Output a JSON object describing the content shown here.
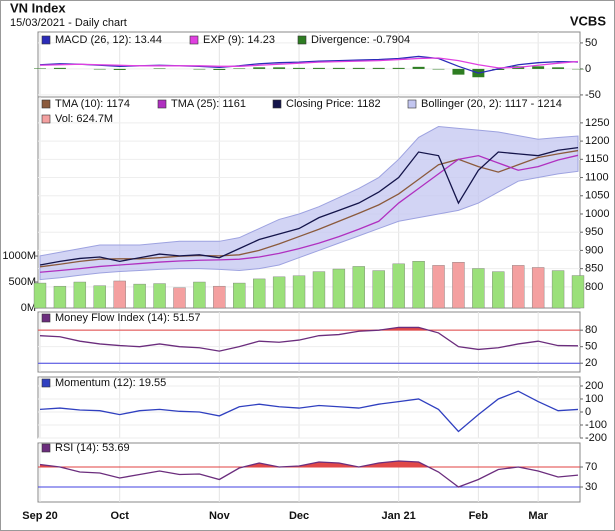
{
  "header": {
    "title": "VN Index",
    "subtitle": "15/03/2021 - Daily chart",
    "brand": "VCBS"
  },
  "chart_data": [
    {
      "type": "line",
      "series": [
        {
          "name": "MACD (26, 12): 13.44",
          "color": "#2b2bb8",
          "values": [
            8,
            10,
            9,
            7,
            5,
            6,
            7,
            6,
            5,
            3,
            6,
            10,
            12,
            13,
            15,
            16,
            17,
            18,
            20,
            24,
            20,
            5,
            -8,
            0,
            8,
            12,
            14,
            13.44
          ]
        },
        {
          "name": "EXP (9): 14.23",
          "color": "#e040e0",
          "values": [
            7,
            8,
            9,
            8,
            7,
            6,
            6,
            6,
            6,
            5,
            5,
            7,
            9,
            11,
            13,
            14,
            15,
            16,
            18,
            20,
            21,
            16,
            8,
            2,
            3,
            7,
            11,
            14.23
          ]
        },
        {
          "name": "Divergence: -0.7904",
          "color": "#2e7d22",
          "type": "bar",
          "values": [
            1,
            2,
            0,
            -1,
            -2,
            0,
            1,
            0,
            -1,
            -2,
            1,
            3,
            3,
            2,
            2,
            2,
            2,
            2,
            2,
            4,
            -1,
            -11,
            -16,
            -2,
            5,
            5,
            3,
            -0.7904
          ]
        }
      ],
      "ylim": [
        -54,
        71
      ],
      "yticks": [
        -50,
        0,
        50
      ]
    },
    {
      "type": "line",
      "series": [
        {
          "name": "TMA (10): 1174",
          "color": "#8b5a3c",
          "values": [
            855,
            862,
            870,
            876,
            877,
            877,
            880,
            884,
            886,
            885,
            888,
            900,
            918,
            938,
            958,
            980,
            1002,
            1025,
            1055,
            1095,
            1135,
            1150,
            1130,
            1115,
            1135,
            1155,
            1165,
            1174
          ]
        },
        {
          "name": "TMA (25): 1161",
          "color": "#b030c0",
          "values": [
            840,
            845,
            850,
            856,
            860,
            864,
            868,
            871,
            873,
            874,
            876,
            882,
            892,
            905,
            920,
            938,
            958,
            980,
            1030,
            1070,
            1110,
            1150,
            1160,
            1140,
            1120,
            1130,
            1148,
            1161
          ]
        },
        {
          "name": "Closing Price: 1182",
          "color": "#14144a",
          "values": [
            860,
            870,
            878,
            882,
            870,
            880,
            890,
            885,
            888,
            880,
            905,
            930,
            945,
            960,
            990,
            1010,
            1030,
            1060,
            1100,
            1170,
            1160,
            1030,
            1120,
            1170,
            1165,
            1160,
            1175,
            1182
          ]
        },
        {
          "name": "Bollinger (20, 2): 1117 - 1214",
          "color": "#c3c6f0",
          "type": "band",
          "upper": [
            885,
            895,
            905,
            915,
            915,
            915,
            920,
            925,
            925,
            925,
            935,
            960,
            985,
            1000,
            1020,
            1045,
            1070,
            1100,
            1150,
            1210,
            1240,
            1235,
            1230,
            1225,
            1215,
            1205,
            1210,
            1214
          ],
          "lower": [
            820,
            825,
            832,
            838,
            842,
            845,
            848,
            850,
            850,
            848,
            845,
            850,
            860,
            880,
            900,
            920,
            940,
            960,
            980,
            990,
            1000,
            1010,
            1030,
            1060,
            1090,
            1100,
            1110,
            1117
          ]
        },
        {
          "name": "Vol: 624.7M",
          "color": "#f4a0a0",
          "type": "bar",
          "axis": "y2",
          "values": [
            480,
            420,
            500,
            430,
            520,
            460,
            470,
            390,
            500,
            420,
            480,
            560,
            600,
            620,
            700,
            750,
            800,
            720,
            850,
            900,
            820,
            880,
            760,
            700,
            820,
            780,
            720,
            624.7
          ],
          "colors": [
            "#9be07a",
            "#9be07a",
            "#9be07a",
            "#9be07a",
            "#f4a0a0",
            "#9be07a",
            "#9be07a",
            "#f4a0a0",
            "#9be07a",
            "#f4a0a0",
            "#9be07a",
            "#9be07a",
            "#9be07a",
            "#9be07a",
            "#9be07a",
            "#9be07a",
            "#9be07a",
            "#9be07a",
            "#9be07a",
            "#9be07a",
            "#f4a0a0",
            "#f4a0a0",
            "#9be07a",
            "#9be07a",
            "#f4a0a0",
            "#f4a0a0",
            "#9be07a",
            "#9be07a"
          ]
        }
      ],
      "ylim": [
        742,
        1321
      ],
      "yticks": [
        800,
        850,
        900,
        950,
        1000,
        1050,
        1100,
        1150,
        1200,
        1250
      ],
      "y2lim": [
        0,
        4060
      ],
      "y2ticks": [
        {
          "value": 0,
          "label": "0M"
        },
        {
          "value": 500,
          "label": "500M"
        },
        {
          "value": 1000,
          "label": "1000M"
        }
      ]
    },
    {
      "type": "line",
      "series": [
        {
          "name": "Money Flow Index (14): 51.57",
          "color": "#6b2d7d",
          "fill_above": 80,
          "fill_color": "#e04848",
          "values": [
            70,
            68,
            60,
            55,
            52,
            50,
            55,
            50,
            48,
            42,
            50,
            60,
            58,
            62,
            70,
            72,
            78,
            80,
            85,
            85,
            75,
            50,
            45,
            48,
            55,
            60,
            52,
            51.57
          ]
        }
      ],
      "levels": [
        {
          "value": 80,
          "color": "#e04040"
        },
        {
          "value": 20,
          "color": "#4040e0"
        }
      ],
      "ylim": [
        4,
        113
      ],
      "yticks": [
        20,
        50,
        80
      ]
    },
    {
      "type": "line",
      "series": [
        {
          "name": "Momentum (12): 19.55",
          "color": "#3040c0",
          "values": [
            20,
            30,
            15,
            10,
            -20,
            10,
            20,
            5,
            0,
            -30,
            40,
            60,
            40,
            30,
            50,
            40,
            30,
            60,
            80,
            100,
            20,
            -150,
            -20,
            100,
            160,
            80,
            10,
            19.55
          ]
        }
      ],
      "ylim": [
        -200,
        269
      ],
      "yticks": [
        -200,
        -100,
        0,
        100,
        200
      ]
    },
    {
      "type": "line",
      "series": [
        {
          "name": "RSI (14): 53.69",
          "color": "#6b2d7d",
          "fill_above": 70,
          "fill_color": "#e04848",
          "values": [
            75,
            70,
            60,
            58,
            48,
            55,
            62,
            55,
            56,
            45,
            68,
            78,
            70,
            72,
            80,
            78,
            70,
            78,
            82,
            80,
            60,
            30,
            45,
            65,
            70,
            62,
            50,
            53.69
          ]
        }
      ],
      "levels": [
        {
          "value": 70,
          "color": "#e04040"
        },
        {
          "value": 30,
          "color": "#4040e0"
        }
      ],
      "ylim": [
        0,
        118
      ],
      "yticks": [
        30,
        70
      ],
      "categories": [
        "Sep 20",
        null,
        null,
        null,
        "Oct",
        null,
        null,
        null,
        null,
        "Nov",
        null,
        null,
        null,
        "Dec",
        null,
        null,
        null,
        null,
        "Jan 21",
        null,
        null,
        null,
        "Feb",
        null,
        null,
        "Mar",
        null,
        null
      ]
    }
  ]
}
